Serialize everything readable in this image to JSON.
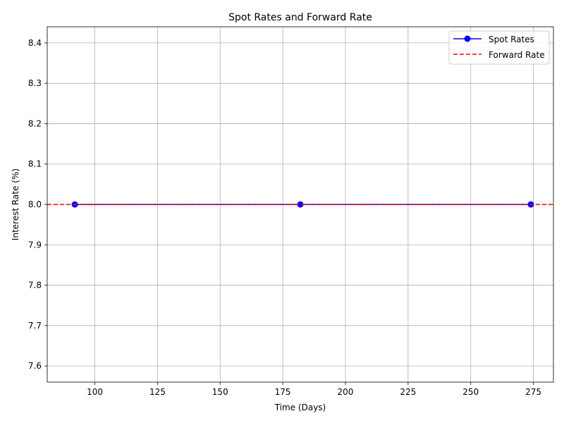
{
  "chart_data": {
    "type": "line",
    "title": "Spot Rates and Forward Rate",
    "xlabel": "Time (Days)",
    "ylabel": "Interest Rate (%)",
    "xlim": [
      81,
      283
    ],
    "ylim": [
      7.56,
      8.44
    ],
    "xticks": [
      100,
      125,
      150,
      175,
      200,
      225,
      250,
      275
    ],
    "yticks": [
      7.6,
      7.7,
      7.8,
      7.9,
      8.0,
      8.1,
      8.2,
      8.3,
      8.4
    ],
    "grid": true,
    "legend_position": "upper-right",
    "series": [
      {
        "name": "Spot Rates",
        "x": [
          92,
          182,
          274
        ],
        "y": [
          8.0,
          8.0,
          8.0
        ],
        "color": "#0000ff",
        "style": "solid",
        "marker": "circle"
      }
    ],
    "hlines": [
      {
        "name": "Forward Rate",
        "y": 8.0,
        "color": "#ff0000",
        "style": "dashed"
      }
    ]
  }
}
